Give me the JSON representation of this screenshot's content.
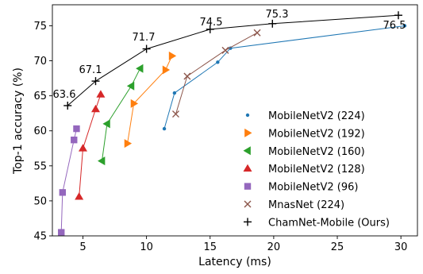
{
  "chart_data": {
    "type": "line",
    "xlabel": "Latency (ms)",
    "ylabel": "Top-1 accuracy (%)",
    "xlim": [
      2.6,
      31.3
    ],
    "ylim": [
      45,
      78
    ],
    "xticks": [
      5,
      10,
      15,
      20,
      25,
      30
    ],
    "yticks": [
      45,
      50,
      55,
      60,
      65,
      70,
      75
    ],
    "grid": false,
    "legend_position": "bottom-right",
    "series": [
      {
        "name": "MobileNetV2 (224)",
        "marker": "dot",
        "color": "#1f77b4",
        "points": [
          [
            11.4,
            60.3
          ],
          [
            12.2,
            65.4
          ],
          [
            15.6,
            69.8
          ],
          [
            16.6,
            71.8
          ],
          [
            30.3,
            75.0
          ]
        ]
      },
      {
        "name": "MobileNetV2 (192)",
        "marker": "triangle-right",
        "color": "#ff7f0e",
        "points": [
          [
            8.5,
            58.2
          ],
          [
            9.0,
            63.9
          ],
          [
            11.5,
            68.7
          ],
          [
            12.0,
            70.7
          ]
        ]
      },
      {
        "name": "MobileNetV2 (160)",
        "marker": "triangle-left",
        "color": "#2ca02c",
        "points": [
          [
            6.5,
            55.7
          ],
          [
            6.9,
            61.0
          ],
          [
            8.8,
            66.4
          ],
          [
            9.5,
            68.9
          ]
        ]
      },
      {
        "name": "MobileNetV2 (128)",
        "marker": "triangle-up",
        "color": "#d62728",
        "points": [
          [
            4.7,
            50.6
          ],
          [
            5.0,
            57.5
          ],
          [
            6.0,
            63.1
          ],
          [
            6.4,
            65.2
          ]
        ]
      },
      {
        "name": "MobileNetV2 (96)",
        "marker": "square",
        "color": "#9467bd",
        "points": [
          [
            3.3,
            45.5
          ],
          [
            3.4,
            51.2
          ],
          [
            4.3,
            58.7
          ],
          [
            4.5,
            60.3
          ]
        ]
      },
      {
        "name": "MnasNet (224)",
        "marker": "x",
        "color": "#8c564b",
        "points": [
          [
            12.3,
            62.4
          ],
          [
            13.2,
            67.8
          ],
          [
            16.2,
            71.5
          ],
          [
            18.7,
            74.0
          ]
        ]
      },
      {
        "name": "ChamNet-Mobile (Ours)",
        "marker": "plus",
        "color": "#000000",
        "points": [
          [
            3.8,
            63.6
          ],
          [
            6.0,
            67.1
          ],
          [
            10.0,
            71.7
          ],
          [
            15.0,
            74.5
          ],
          [
            19.9,
            75.3
          ],
          [
            29.8,
            76.5
          ]
        ]
      }
    ],
    "annotations": [
      "63.6",
      "67.1",
      "71.7",
      "74.5",
      "75.3",
      "76.5"
    ]
  }
}
